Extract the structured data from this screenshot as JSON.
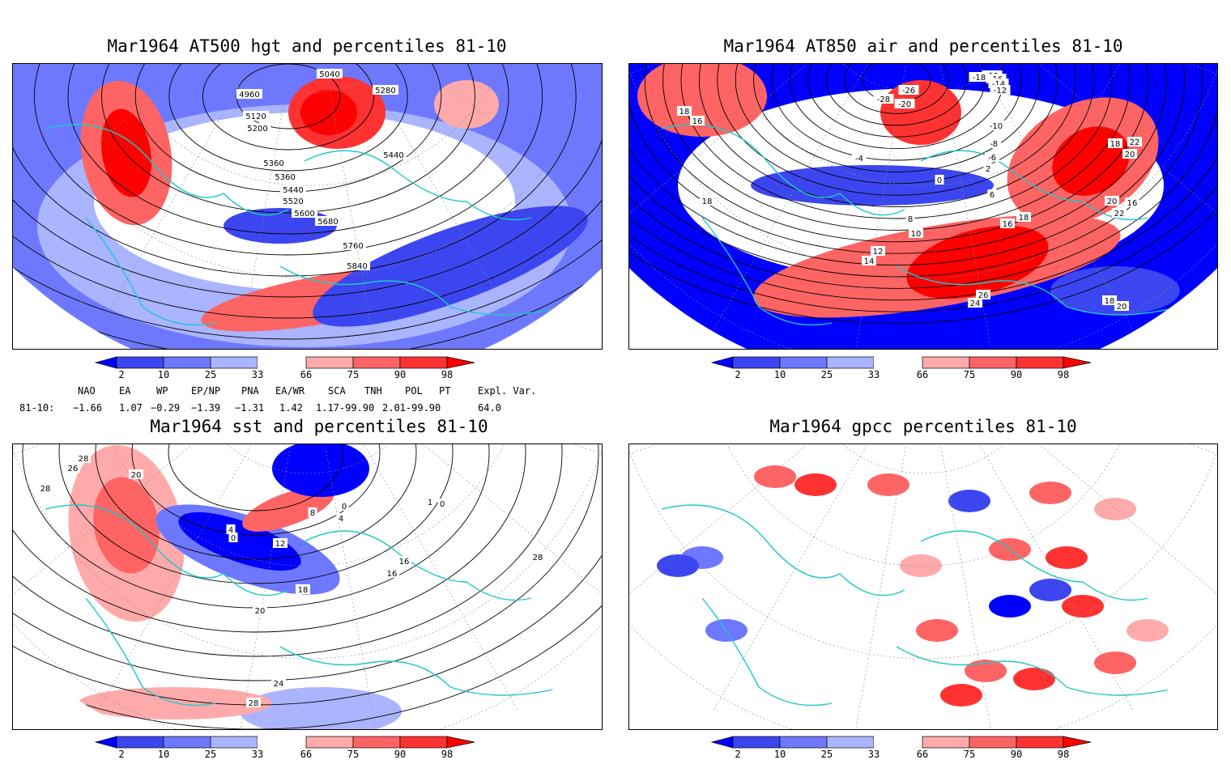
{
  "colors": {
    "p2": "#0000ff",
    "p10": "#3c46f0",
    "p25": "#6e78ff",
    "p33": "#aab4ff",
    "p66": "#ffaaaa",
    "p75": "#ff6464",
    "p90": "#ff3232",
    "p98": "#ff0000",
    "coast": "#1ec8c8",
    "contour": "#000000"
  },
  "panels": {
    "tl": {
      "title": "Mar1964 AT500 hgt and percentiles 81-10",
      "labels": [
        "5040",
        "5280",
        "4960",
        "5120",
        "5200",
        "5360",
        "5440",
        "5360",
        "5440",
        "5520",
        "5600",
        "5680",
        "5760",
        "5840"
      ]
    },
    "tr": {
      "title": "Mar1964 AT850 air and percentiles 81-10",
      "labels": [
        "-22",
        "-18",
        "-16",
        "-14",
        "-12",
        "-26",
        "-20",
        "-28",
        "-10",
        "-8",
        "-6",
        "-4",
        "0",
        "2",
        "6",
        "8",
        "10",
        "12",
        "14",
        "16",
        "18",
        "20",
        "22",
        "24",
        "26",
        "18",
        "16",
        "18",
        "16",
        "18",
        "20",
        "22",
        "20",
        "18"
      ]
    },
    "bl": {
      "title": "Mar1964 sst and percentiles 81-10",
      "labels": [
        "28",
        "26",
        "20",
        "28",
        "0",
        "4",
        "8",
        "12",
        "16",
        "18",
        "20",
        "24",
        "28",
        "4",
        "0",
        "16",
        "28",
        "1",
        "0"
      ]
    },
    "br": {
      "title": "Mar1964 gpcc percentiles 81-10",
      "labels": []
    }
  },
  "colorbar": {
    "ticks": [
      "2",
      "10",
      "25",
      "33",
      "66",
      "75",
      "90",
      "98"
    ]
  },
  "indices": {
    "headers": [
      "NAO",
      "EA",
      "WP",
      "EP/NP",
      "PNA",
      "EA/WR",
      "SCA",
      "TNH",
      "POL",
      "PT",
      "Expl. Var."
    ],
    "row_label": "81-10:",
    "values": [
      "−1.66",
      "1.07",
      "−0.29",
      "−1.39",
      "−1.31",
      "1.42",
      "1.17-99.90",
      "2.01-99.90",
      "64.0"
    ]
  }
}
